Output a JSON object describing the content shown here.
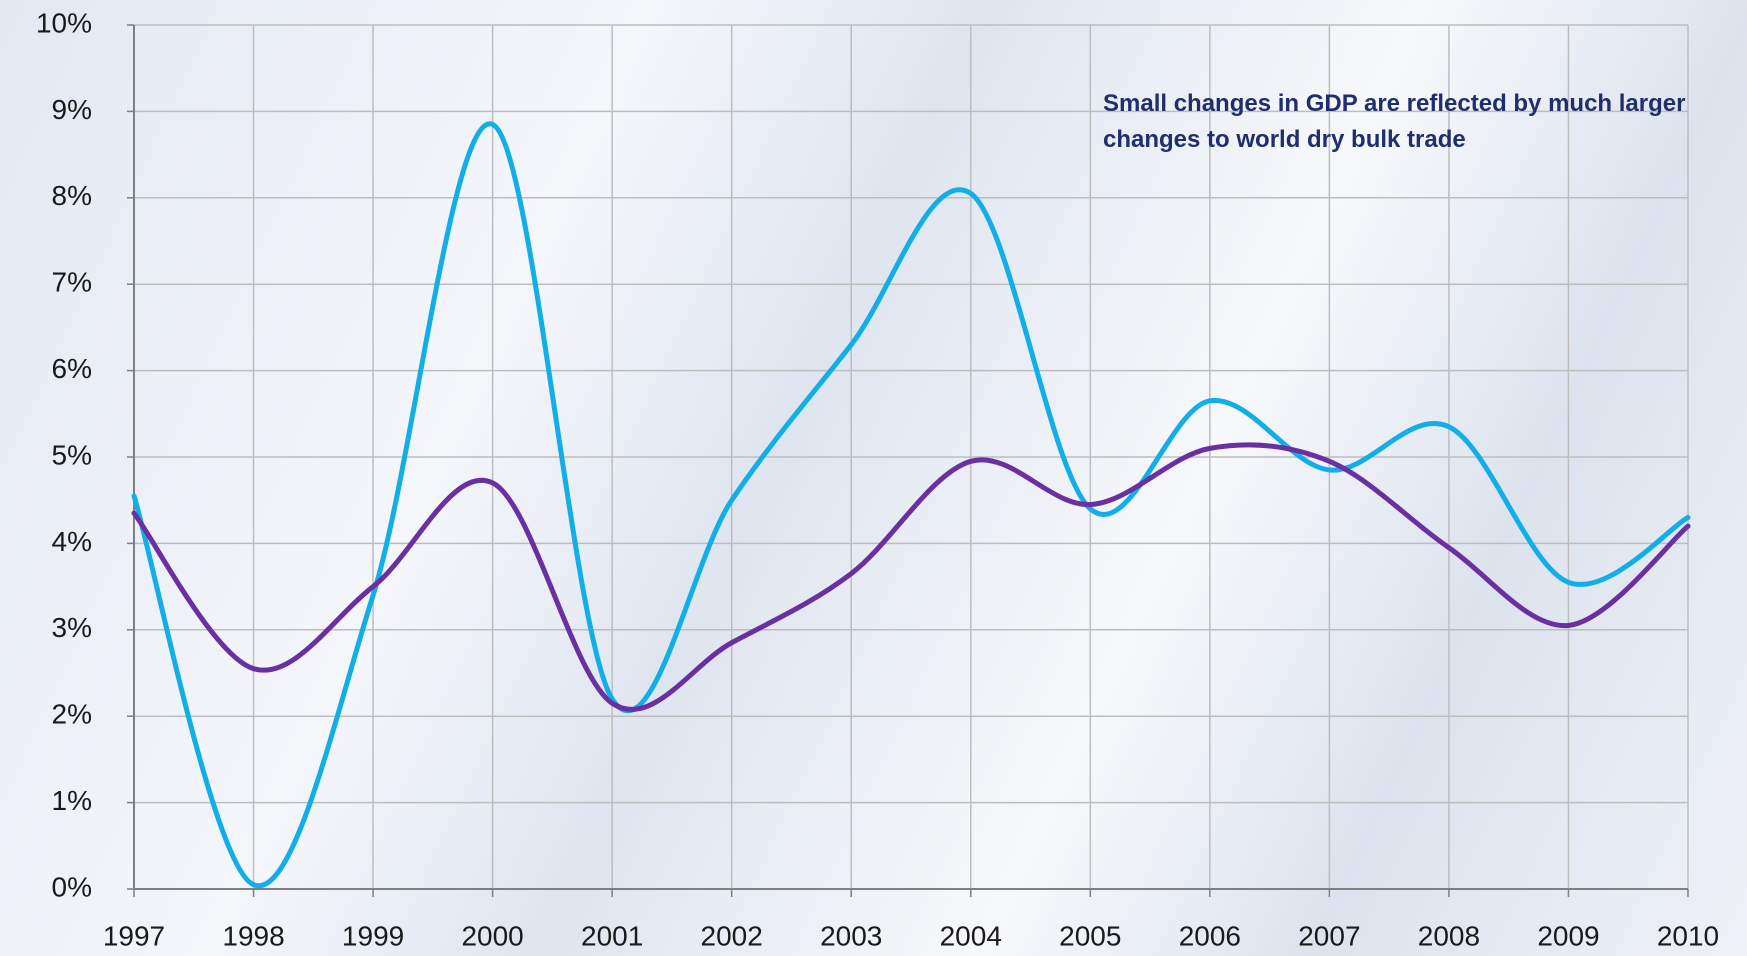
{
  "chart_data": {
    "type": "line",
    "annotation": "Small changes in GDP are reflected by much larger changes to world dry bulk trade",
    "x": [
      1997,
      1998,
      1999,
      2000,
      2001,
      2002,
      2003,
      2004,
      2005,
      2006,
      2007,
      2008,
      2009,
      2010
    ],
    "xlim": [
      1997,
      2010
    ],
    "xticks": [
      1997,
      1998,
      1999,
      2000,
      2001,
      2002,
      2003,
      2004,
      2005,
      2006,
      2007,
      2008,
      2009,
      2010
    ],
    "ylim": [
      0,
      10
    ],
    "yticks": [
      {
        "value": 0,
        "label": "0%"
      },
      {
        "value": 1,
        "label": "1%"
      },
      {
        "value": 2,
        "label": "2%"
      },
      {
        "value": 3,
        "label": "3%"
      },
      {
        "value": 4,
        "label": "4%"
      },
      {
        "value": 5,
        "label": "5%"
      },
      {
        "value": 6,
        "label": "6%"
      },
      {
        "value": 7,
        "label": "7%"
      },
      {
        "value": 8,
        "label": "8%"
      },
      {
        "value": 9,
        "label": "9%"
      },
      {
        "value": 10,
        "label": "10%"
      }
    ],
    "grid": true,
    "smooth": true,
    "series": [
      {
        "color": "#12aee8",
        "values": [
          4.55,
          0.05,
          3.4,
          8.85,
          2.2,
          4.5,
          6.3,
          8.05,
          4.4,
          5.65,
          4.85,
          5.35,
          3.55,
          4.3
        ]
      },
      {
        "color": "#6a2fa0",
        "values": [
          4.35,
          2.55,
          3.5,
          4.7,
          2.15,
          2.85,
          3.65,
          4.95,
          4.45,
          5.1,
          4.95,
          3.95,
          3.05,
          4.2
        ]
      }
    ]
  }
}
